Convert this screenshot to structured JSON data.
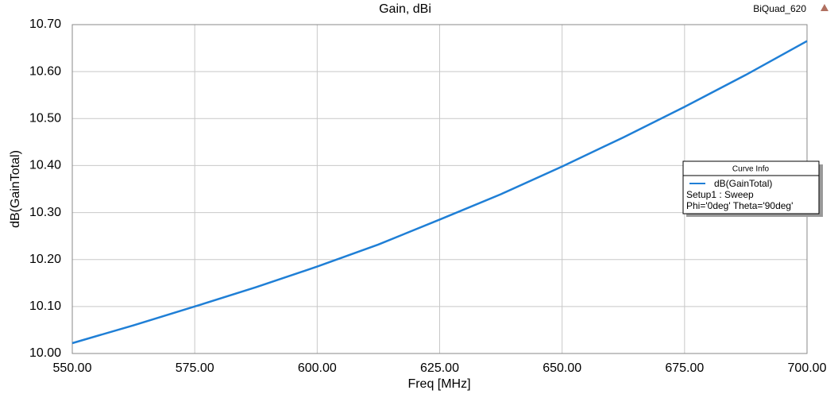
{
  "chart_data": {
    "type": "line",
    "title": "Gain, dBi",
    "project": "BiQuad_620",
    "x_label": "Freq [MHz]",
    "y_label": "dB(GainTotal)",
    "x": [
      550,
      562.5,
      575,
      587.5,
      600,
      612.5,
      625,
      637.5,
      650,
      662.5,
      675,
      687.5,
      700
    ],
    "series": [
      {
        "name": "dB(GainTotal)",
        "color": "#1f7fd6",
        "values": [
          10.022,
          10.06,
          10.1,
          10.141,
          10.185,
          10.232,
          10.285,
          10.339,
          10.398,
          10.46,
          10.525,
          10.593,
          10.665
        ]
      }
    ],
    "legend_title": "Curve Info",
    "legend_lines": [
      "Setup1 : Sweep",
      "Phi='0deg' Theta='90deg'"
    ],
    "legend_position": "right",
    "grid": true,
    "xlim": [
      550,
      700
    ],
    "xticks": [
      {
        "value": 550,
        "label": "550.00"
      },
      {
        "value": 575,
        "label": "575.00"
      },
      {
        "value": 600,
        "label": "600.00"
      },
      {
        "value": 625,
        "label": "625.00"
      },
      {
        "value": 650,
        "label": "650.00"
      },
      {
        "value": 675,
        "label": "675.00"
      },
      {
        "value": 700,
        "label": "700.00"
      }
    ],
    "ylim": [
      10.0,
      10.7
    ],
    "yticks": [
      {
        "value": 10.0,
        "label": "10.00"
      },
      {
        "value": 10.1,
        "label": "10.10"
      },
      {
        "value": 10.2,
        "label": "10.20"
      },
      {
        "value": 10.3,
        "label": "10.30"
      },
      {
        "value": 10.4,
        "label": "10.40"
      },
      {
        "value": 10.5,
        "label": "10.50"
      },
      {
        "value": 10.6,
        "label": "10.60"
      },
      {
        "value": 10.7,
        "label": "10.70"
      }
    ]
  }
}
